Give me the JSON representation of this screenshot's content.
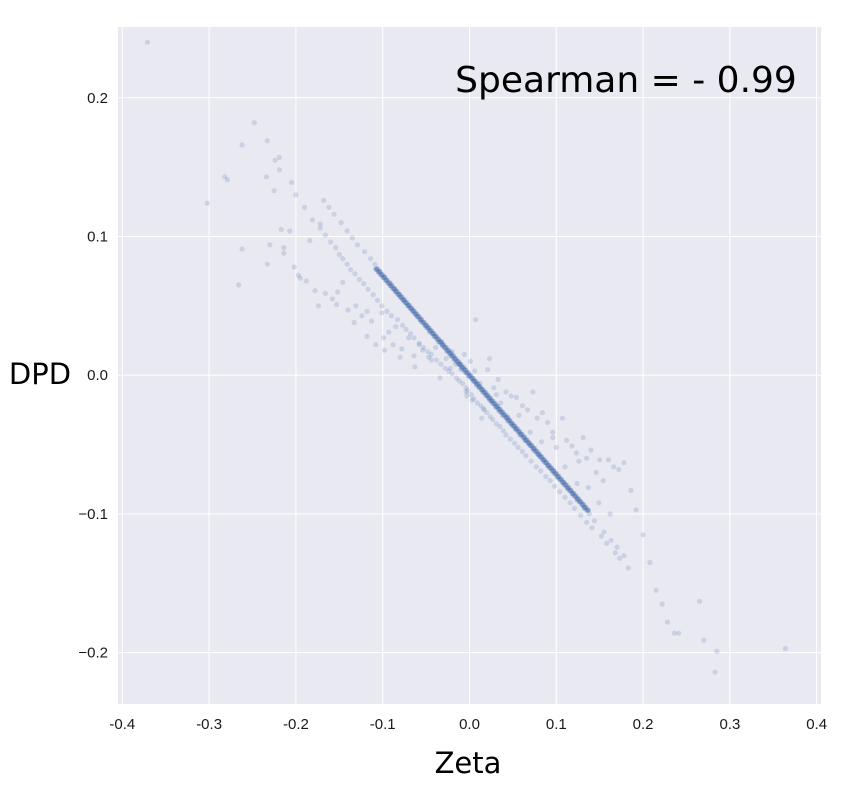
{
  "chart_data": {
    "type": "scatter",
    "title": "",
    "xlabel": "Zeta",
    "ylabel": "DPD",
    "annotation": "Spearman = - 0.99",
    "xlim": [
      -0.405,
      0.405
    ],
    "ylim": [
      -0.237,
      0.251
    ],
    "xticks": [
      -0.4,
      -0.3,
      -0.2,
      -0.1,
      0.0,
      0.1,
      0.2,
      0.3,
      0.4
    ],
    "xtick_labels": [
      "-0.4",
      "-0.3",
      "-0.2",
      "-0.1",
      "0.0",
      "0.1",
      "0.2",
      "0.3",
      "0.4"
    ],
    "yticks": [
      -0.2,
      -0.1,
      0.0,
      0.1,
      0.2
    ],
    "ytick_labels": [
      "−0.2",
      "−0.1",
      "0.0",
      "0.1",
      "0.2"
    ],
    "grid": true,
    "colors": {
      "background": "#e9e9f1",
      "grid": "#ffffff",
      "marker": "#4c72b0"
    },
    "series": [
      {
        "x": [
          -0.371,
          -0.302,
          -0.282,
          -0.279,
          -0.266,
          -0.262,
          -0.262,
          -0.248,
          -0.233,
          -0.234,
          -0.233,
          -0.23,
          -0.225,
          -0.217,
          -0.214,
          -0.219,
          -0.207,
          -0.202,
          -0.197,
          -0.188,
          -0.184,
          -0.178,
          -0.172,
          -0.166,
          -0.158,
          -0.153,
          -0.146,
          -0.14,
          -0.131,
          -0.124,
          -0.118,
          -0.113,
          -0.108,
          -0.101,
          -0.098,
          -0.093,
          -0.088,
          -0.085,
          -0.078,
          -0.07,
          -0.064,
          -0.058,
          -0.054,
          -0.044,
          -0.039,
          -0.032,
          -0.027,
          -0.02,
          -0.016,
          -0.01,
          -0.006,
          -0.004,
          0.001,
          0.003,
          0.007,
          0.012,
          0.016,
          0.021,
          0.028,
          0.031,
          0.036,
          0.042,
          0.048,
          0.054,
          0.061,
          0.067,
          0.073,
          0.078,
          0.084,
          0.09,
          0.096,
          0.1,
          0.107,
          0.112,
          0.118,
          0.123,
          0.126,
          0.131,
          0.135,
          0.14,
          0.146,
          0.15,
          0.154,
          0.16,
          0.166,
          0.172,
          0.178,
          0.186,
          0.192,
          0.2,
          0.208,
          0.215,
          0.222,
          0.228,
          0.236,
          0.241,
          0.265,
          0.27,
          0.285,
          0.283,
          0.364,
          -0.224,
          -0.219,
          -0.205,
          -0.2,
          -0.19,
          -0.181,
          -0.172,
          -0.166,
          -0.16,
          -0.154,
          -0.15,
          -0.146,
          -0.141,
          -0.137,
          -0.132,
          -0.127,
          -0.122,
          -0.117,
          -0.111,
          -0.106,
          -0.101,
          -0.095,
          -0.09,
          -0.083,
          -0.077,
          -0.073,
          -0.068,
          -0.064,
          -0.058,
          -0.053,
          -0.048,
          -0.044,
          -0.038,
          -0.033,
          -0.028,
          -0.024,
          -0.02,
          -0.015,
          -0.012,
          -0.008,
          -0.004,
          -0.002,
          0.002,
          0.005,
          0.009,
          0.013,
          0.017,
          0.02,
          0.024,
          0.027,
          0.031,
          0.035,
          0.039,
          0.042,
          0.047,
          0.052,
          0.056,
          0.061,
          0.065,
          0.071,
          0.077,
          0.082,
          0.088,
          0.093,
          0.098,
          0.104,
          0.11,
          0.116,
          0.121,
          0.128,
          0.135,
          0.141,
          0.152,
          0.158,
          0.168,
          0.173,
          0.183,
          -0.168,
          -0.162,
          -0.156,
          -0.148,
          -0.141,
          -0.135,
          -0.129,
          -0.121,
          -0.114,
          -0.109,
          -0.103,
          -0.098,
          -0.091,
          -0.086,
          -0.081,
          -0.076,
          -0.07,
          -0.066,
          -0.061,
          -0.056,
          -0.05,
          -0.046,
          -0.041,
          -0.036,
          -0.031,
          -0.026,
          -0.022,
          -0.018,
          -0.013,
          -0.009,
          -0.005,
          -0.001,
          0.004,
          0.008,
          0.011,
          0.015,
          0.019,
          0.023,
          0.026,
          0.03,
          0.034,
          0.038,
          0.044,
          0.049,
          0.053,
          0.058,
          0.064,
          0.069,
          0.074,
          0.08,
          0.086,
          0.091,
          0.097,
          0.102,
          0.108,
          0.113,
          0.119,
          0.124,
          0.132,
          0.138,
          0.144,
          0.155,
          0.163,
          0.17,
          0.178,
          -0.214,
          -0.195,
          -0.174,
          -0.152,
          -0.133,
          -0.118,
          -0.099,
          -0.08,
          -0.063,
          -0.047,
          -0.034,
          -0.022,
          -0.011,
          -0.003,
          0.006,
          0.014,
          0.023,
          0.033,
          0.044,
          0.057,
          0.07,
          0.083,
          0.096,
          0.11,
          0.124,
          0.137,
          0.149,
          0.162
        ],
        "y": [
          0.24,
          0.124,
          0.143,
          0.141,
          0.065,
          0.091,
          0.166,
          0.182,
          0.169,
          0.143,
          0.08,
          0.094,
          0.133,
          0.105,
          0.092,
          0.157,
          0.104,
          0.078,
          0.072,
          0.068,
          0.097,
          0.061,
          0.109,
          0.059,
          0.055,
          0.051,
          0.067,
          0.047,
          0.05,
          0.043,
          0.028,
          0.039,
          0.022,
          0.045,
          0.018,
          0.031,
          0.022,
          0.035,
          0.019,
          0.027,
          0.014,
          0.022,
          0.018,
          0.011,
          0.02,
          0.024,
          0.012,
          0.017,
          0.008,
          0.004,
          0.015,
          -0.012,
          0.01,
          -0.018,
          0.04,
          -0.006,
          -0.024,
          0.004,
          -0.009,
          -0.014,
          -0.02,
          -0.012,
          -0.015,
          -0.016,
          -0.022,
          -0.025,
          -0.012,
          -0.031,
          -0.027,
          -0.034,
          -0.041,
          -0.052,
          -0.031,
          -0.047,
          -0.051,
          -0.056,
          -0.062,
          -0.045,
          -0.06,
          -0.054,
          -0.07,
          -0.061,
          -0.076,
          -0.061,
          -0.066,
          -0.068,
          -0.063,
          -0.083,
          -0.097,
          -0.115,
          -0.135,
          -0.155,
          -0.165,
          -0.178,
          -0.186,
          -0.186,
          -0.163,
          -0.191,
          -0.199,
          -0.214,
          -0.197,
          0.155,
          0.148,
          0.139,
          0.13,
          0.121,
          0.112,
          0.106,
          0.101,
          0.096,
          0.092,
          0.087,
          0.084,
          0.08,
          0.076,
          0.073,
          0.069,
          0.066,
          0.062,
          0.058,
          0.054,
          0.05,
          0.046,
          0.043,
          0.04,
          0.036,
          0.033,
          0.03,
          0.027,
          0.023,
          0.02,
          0.017,
          0.015,
          0.011,
          0.008,
          0.005,
          0.003,
          0.001,
          -0.002,
          -0.004,
          -0.006,
          -0.009,
          -0.011,
          -0.014,
          -0.017,
          -0.02,
          -0.022,
          -0.025,
          -0.027,
          -0.03,
          -0.032,
          -0.035,
          -0.037,
          -0.04,
          -0.043,
          -0.046,
          -0.049,
          -0.052,
          -0.055,
          -0.058,
          -0.062,
          -0.066,
          -0.069,
          -0.073,
          -0.076,
          -0.08,
          -0.084,
          -0.088,
          -0.092,
          -0.096,
          -0.101,
          -0.106,
          -0.11,
          -0.116,
          -0.121,
          -0.128,
          -0.132,
          -0.139,
          0.126,
          0.121,
          0.116,
          0.11,
          0.104,
          0.099,
          0.094,
          0.089,
          0.084,
          0.08,
          0.075,
          0.071,
          0.066,
          0.062,
          0.058,
          0.054,
          0.05,
          0.047,
          0.043,
          0.039,
          0.035,
          0.031,
          0.028,
          0.024,
          0.021,
          0.017,
          0.014,
          0.011,
          0.008,
          0.005,
          0.002,
          -0.001,
          -0.004,
          -0.007,
          -0.009,
          -0.012,
          -0.015,
          -0.018,
          -0.02,
          -0.023,
          -0.026,
          -0.029,
          -0.033,
          -0.036,
          -0.039,
          -0.043,
          -0.047,
          -0.05,
          -0.054,
          -0.058,
          -0.062,
          -0.066,
          -0.07,
          -0.074,
          -0.078,
          -0.082,
          -0.086,
          -0.09,
          -0.096,
          -0.1,
          -0.105,
          -0.113,
          -0.119,
          -0.124,
          -0.13,
          0.088,
          0.07,
          0.05,
          0.06,
          0.038,
          0.046,
          0.027,
          0.013,
          0.006,
          0.013,
          -0.002,
          0.005,
          0.008,
          -0.015,
          0.003,
          -0.031,
          0.012,
          -0.003,
          -0.03,
          -0.029,
          -0.041,
          -0.048,
          -0.045,
          -0.066,
          -0.078,
          -0.081,
          -0.092,
          -0.1
        ]
      }
    ]
  }
}
